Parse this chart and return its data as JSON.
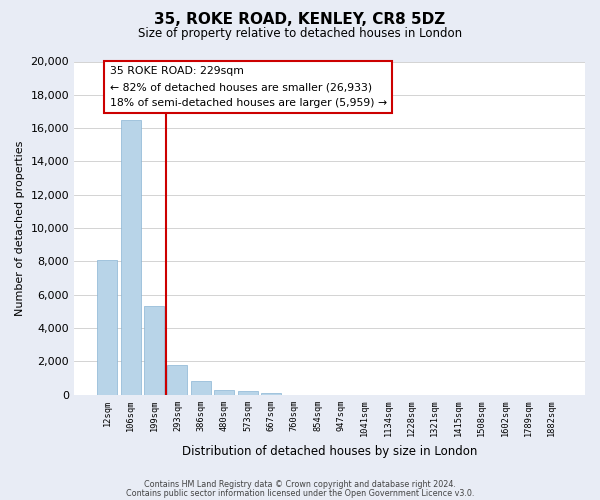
{
  "title": "35, ROKE ROAD, KENLEY, CR8 5DZ",
  "subtitle": "Size of property relative to detached houses in London",
  "bar_values": [
    8100,
    16500,
    5300,
    1800,
    800,
    300,
    200,
    100,
    0,
    0,
    0,
    0,
    0,
    0,
    0,
    0,
    0,
    0,
    0,
    0
  ],
  "categories": [
    "12sqm",
    "106sqm",
    "199sqm",
    "293sqm",
    "386sqm",
    "480sqm",
    "573sqm",
    "667sqm",
    "760sqm",
    "854sqm",
    "947sqm",
    "1041sqm",
    "1134sqm",
    "1228sqm",
    "1321sqm",
    "1415sqm",
    "1508sqm",
    "1602sqm",
    "1789sqm",
    "1882sqm"
  ],
  "bar_color": "#b8d4e8",
  "bar_edge_color": "#8ab4d4",
  "vline_color": "#cc0000",
  "ylabel": "Number of detached properties",
  "xlabel": "Distribution of detached houses by size in London",
  "ylim": [
    0,
    20000
  ],
  "yticks": [
    0,
    2000,
    4000,
    6000,
    8000,
    10000,
    12000,
    14000,
    16000,
    18000,
    20000
  ],
  "annotation_title": "35 ROKE ROAD: 229sqm",
  "annotation_line1": "← 82% of detached houses are smaller (26,933)",
  "annotation_line2": "18% of semi-detached houses are larger (5,959) →",
  "footer1": "Contains HM Land Registry data © Crown copyright and database right 2024.",
  "footer2": "Contains public sector information licensed under the Open Government Licence v3.0.",
  "background_color": "#e8ecf5",
  "plot_background": "#ffffff",
  "vline_xindex": 2
}
